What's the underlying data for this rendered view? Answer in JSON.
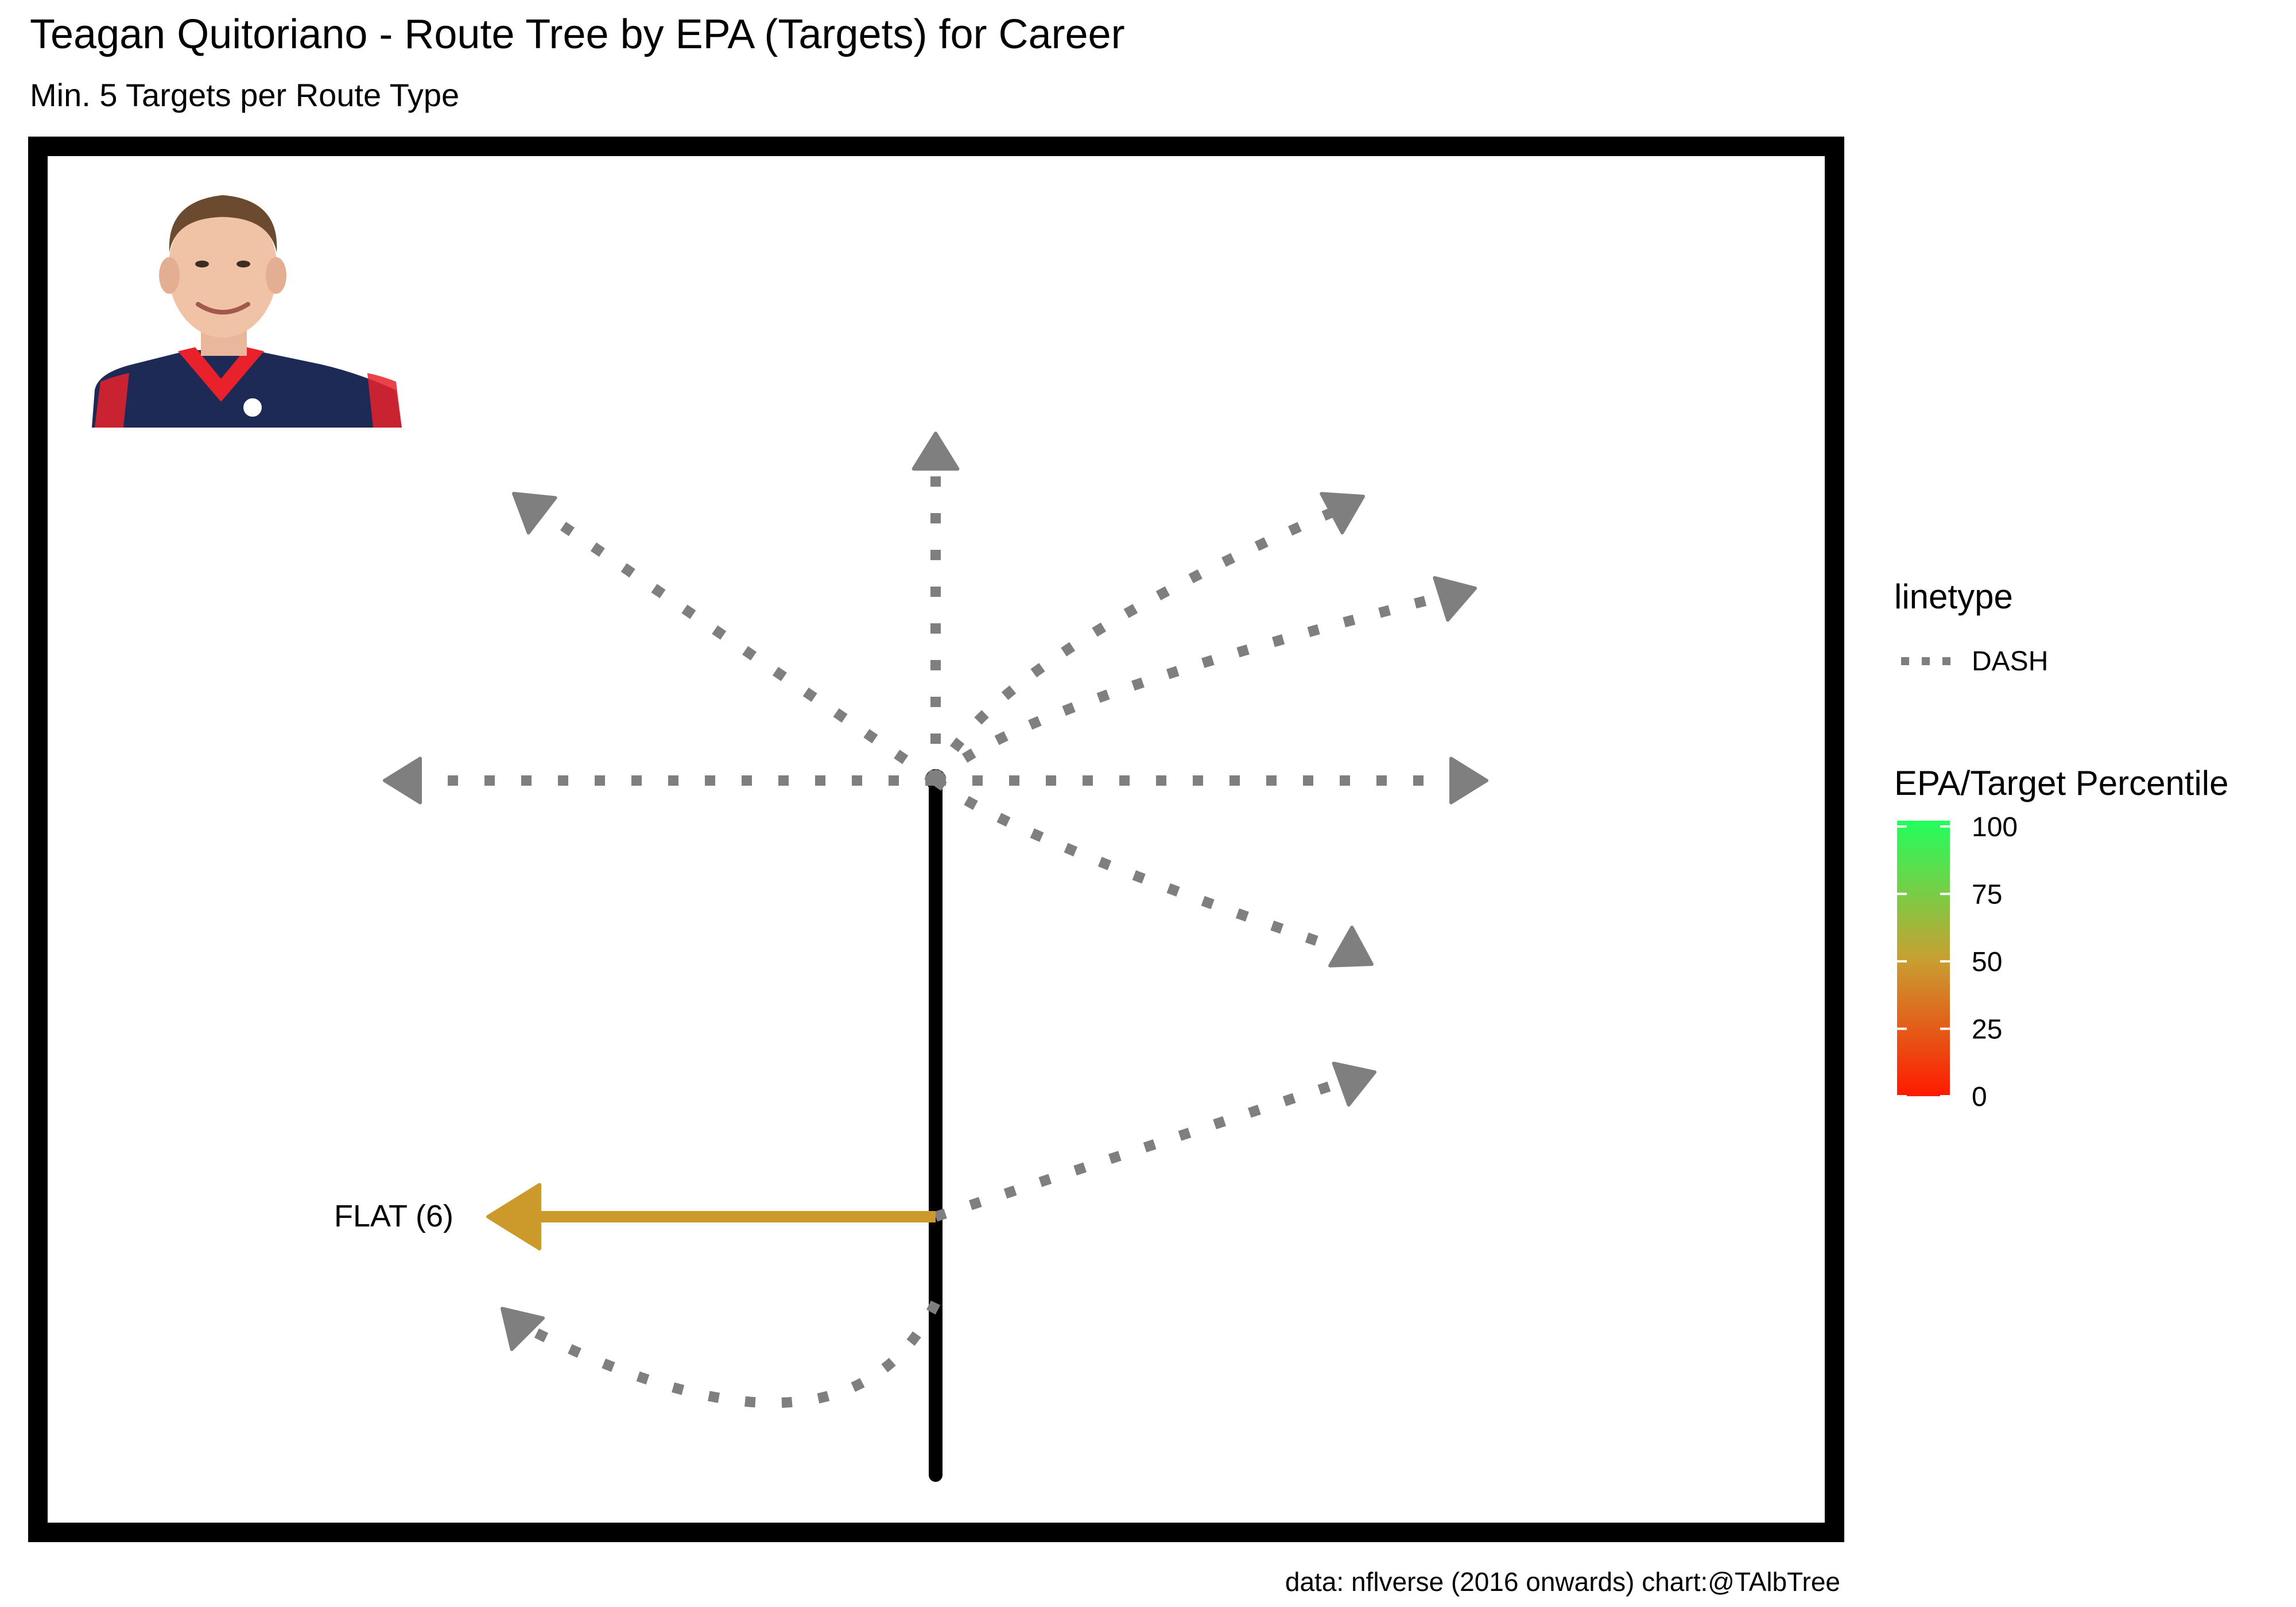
{
  "chart_data": {
    "type": "route-tree",
    "title": "Teagan Quitoriano - Route Tree by EPA (Targets) for Career",
    "subtitle": "Min. 5 Targets per Route Type",
    "caption": "data: nflverse (2016 onwards)  chart:@TAlbTree",
    "highlighted_route": {
      "label": "FLAT (6)",
      "color": "#cc9a2a"
    },
    "dash_color": "#7f7f7f",
    "stem_color": "#000000",
    "legend": {
      "linetype_title": "linetype",
      "linetype_entry": "DASH",
      "color_title": "EPA/Target Percentile",
      "color_scale": {
        "low": "#ff1a00",
        "mid": "#c8a032",
        "high": "#21ff5c"
      },
      "ticks": [
        "100",
        "75",
        "50",
        "25",
        "0"
      ]
    }
  }
}
